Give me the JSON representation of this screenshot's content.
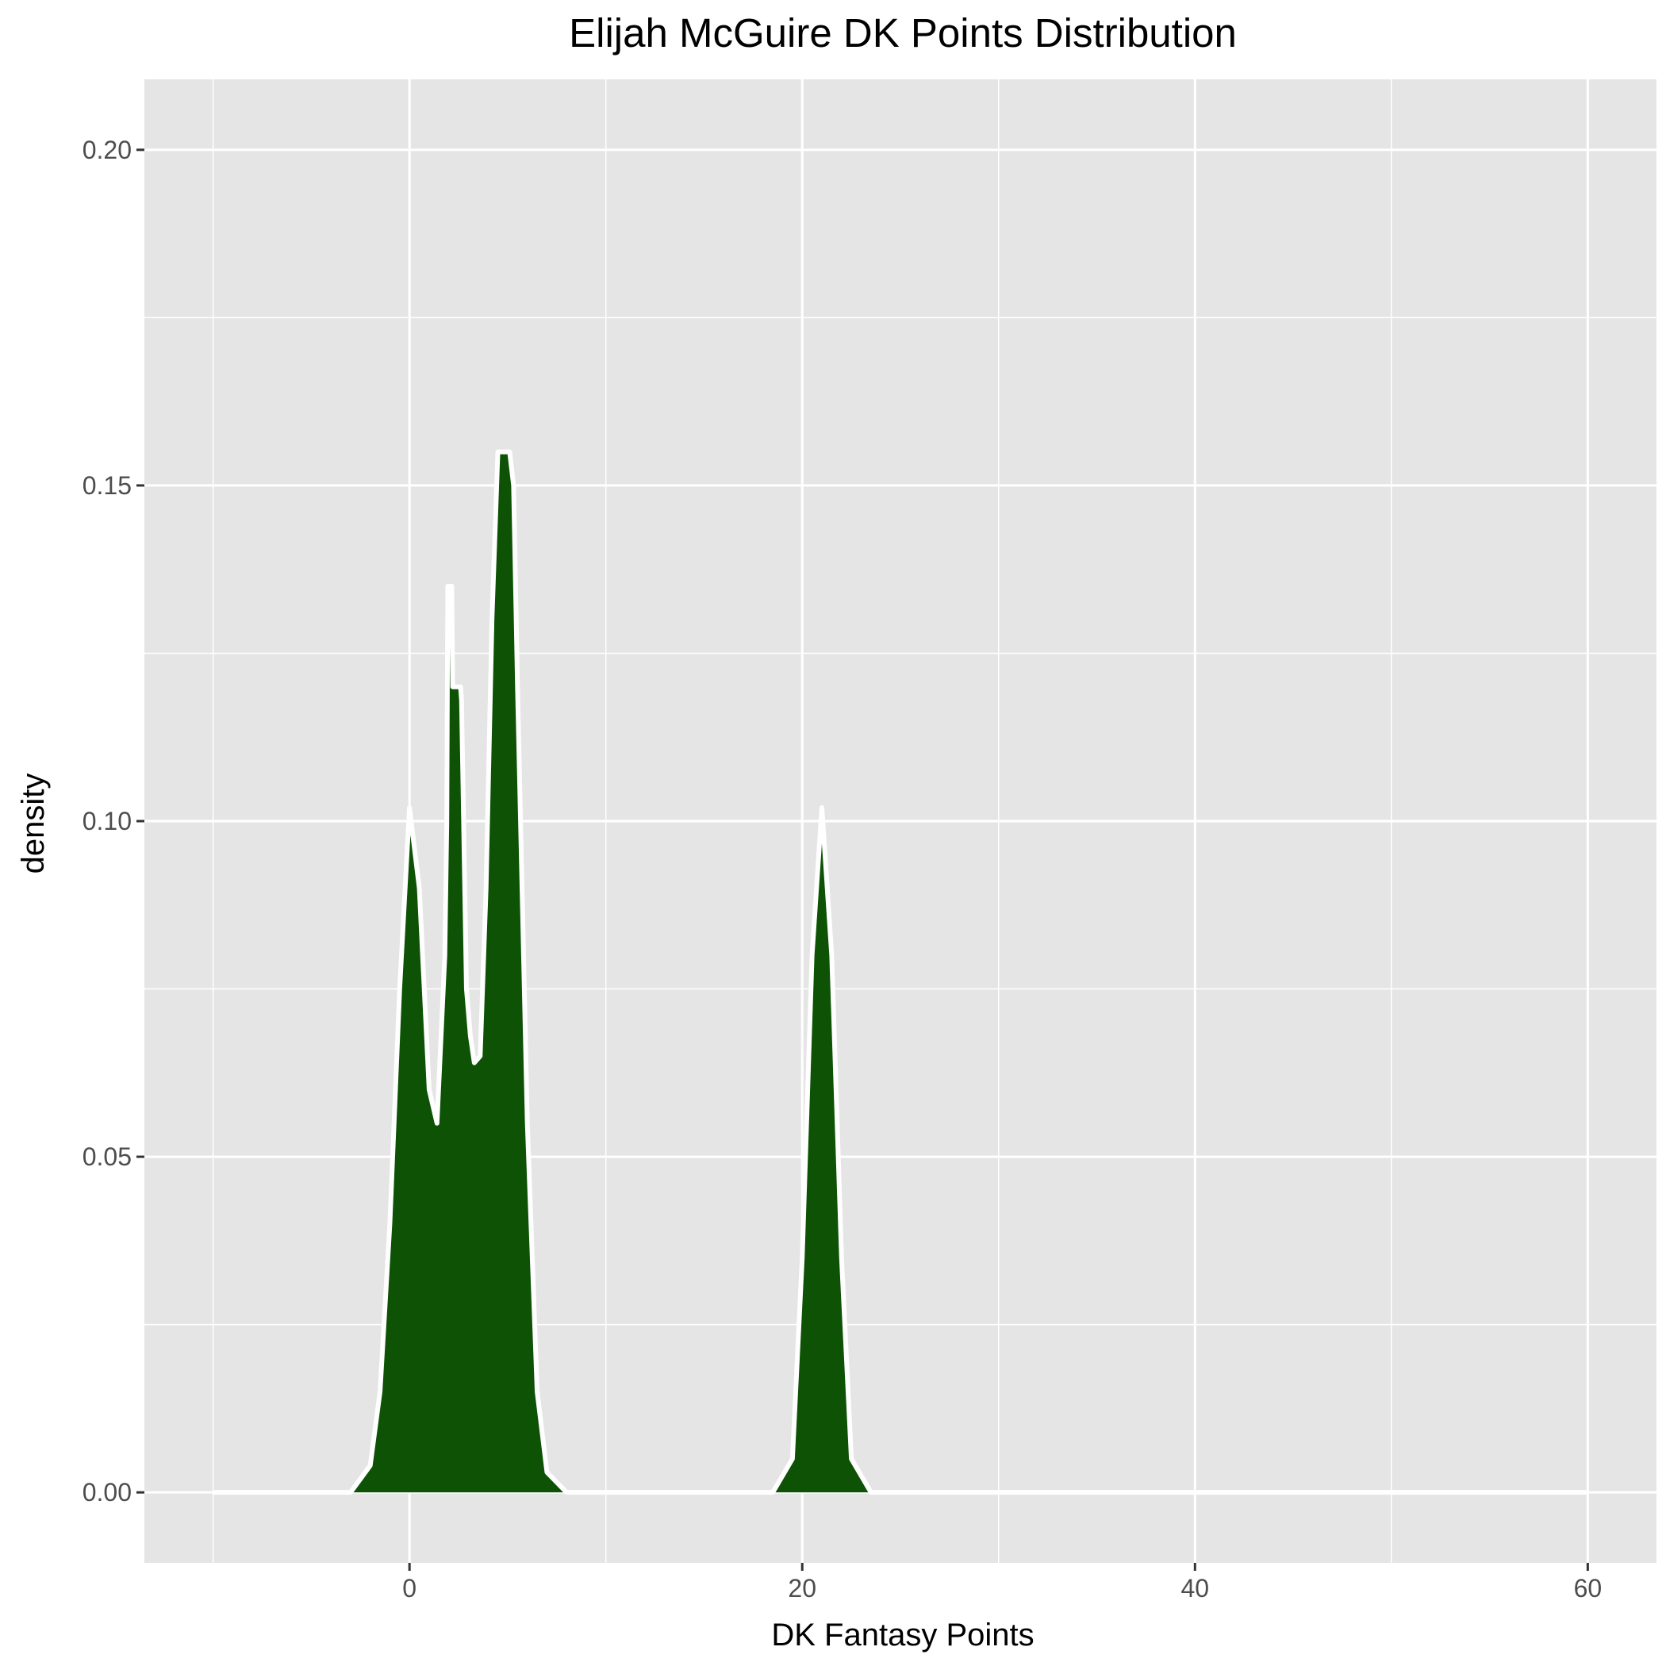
{
  "chart_data": {
    "type": "area",
    "title": "Elijah McGuire DK Points Distribution",
    "xlabel": "DK Fantasy Points",
    "ylabel": "density",
    "xlim": [
      -13.5,
      63.5
    ],
    "ylim": [
      -0.0105,
      0.2105
    ],
    "x_ticks": [
      0,
      20,
      40,
      60
    ],
    "x_tick_labels": [
      "0",
      "20",
      "40",
      "60"
    ],
    "x_minor_ticks": [
      -10,
      10,
      30,
      50
    ],
    "y_ticks": [
      0.0,
      0.05,
      0.1,
      0.15,
      0.2
    ],
    "y_tick_labels": [
      "0.00",
      "0.05",
      "0.10",
      "0.15",
      "0.20"
    ],
    "y_minor_ticks": [
      0.025,
      0.075,
      0.125,
      0.175
    ],
    "grid": true,
    "series": [
      {
        "x": [
          -10,
          -3,
          -2,
          -1.5,
          -1,
          -0.5,
          0,
          0.5,
          1,
          1.4,
          1.8,
          1.9,
          1.95,
          2.15,
          2.2,
          2.6,
          2.65,
          2.9,
          3.1,
          3.3,
          3.6,
          3.9,
          4.2,
          4.5,
          4.6,
          4.62,
          4.9,
          5.1,
          5.3,
          5.5,
          6,
          6.5,
          7,
          8,
          18.5,
          19.5,
          20,
          20.5,
          21,
          21.5,
          22,
          22.5,
          23.5,
          60
        ],
        "y": [
          0.0,
          0.0,
          0.004,
          0.015,
          0.04,
          0.075,
          0.102,
          0.09,
          0.06,
          0.055,
          0.08,
          0.1,
          0.135,
          0.135,
          0.12,
          0.12,
          0.118,
          0.075,
          0.068,
          0.064,
          0.065,
          0.09,
          0.13,
          0.155,
          0.155,
          0.155,
          0.155,
          0.155,
          0.15,
          0.12,
          0.055,
          0.015,
          0.003,
          0.0,
          0.0,
          0.005,
          0.035,
          0.08,
          0.102,
          0.08,
          0.035,
          0.005,
          0.0,
          0.0
        ]
      }
    ],
    "fill_color": "#0d5205",
    "panel_color": "#e5e5e5",
    "grid_color": "#ffffff",
    "outline_color": "#ffffff"
  }
}
